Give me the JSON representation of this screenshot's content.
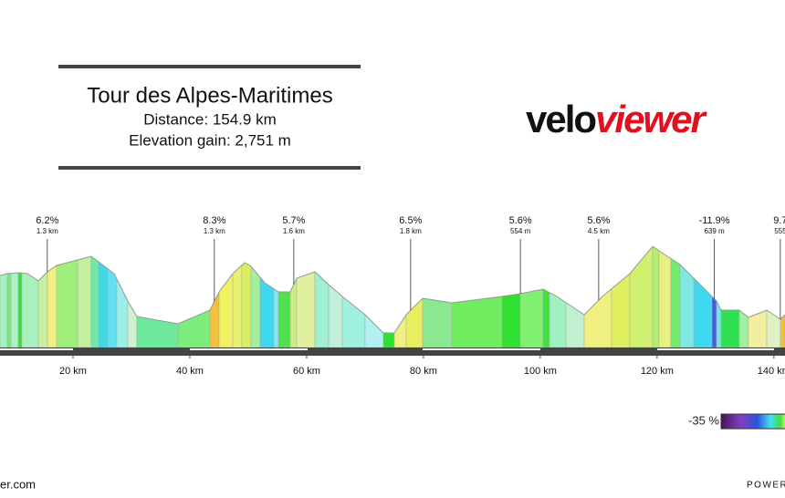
{
  "header": {
    "title": "Tour des Alpes-Maritimes",
    "distance": "Distance: 154.9 km",
    "elevation_gain": "Elevation gain: 2,751 m"
  },
  "logo": {
    "velo": "velo",
    "viewer": "viewer"
  },
  "chart_data": {
    "type": "area",
    "xlim": [
      7.5,
      141.9
    ],
    "xticks": [
      {
        "value": 20,
        "label": "20 km"
      },
      {
        "value": 40,
        "label": "40 km"
      },
      {
        "value": 60,
        "label": "60 km"
      },
      {
        "value": 80,
        "label": "80 km"
      },
      {
        "value": 100,
        "label": "100 km"
      },
      {
        "value": 120,
        "label": "120 km"
      },
      {
        "value": 140,
        "label": "140 km"
      }
    ],
    "annotations": [
      {
        "x": 15.6,
        "grade": "6.2%",
        "length": "1.3 km"
      },
      {
        "x": 44.2,
        "grade": "8.3%",
        "length": "1.3 km"
      },
      {
        "x": 57.8,
        "grade": "5.7%",
        "length": "1.6 km"
      },
      {
        "x": 77.8,
        "grade": "6.5%",
        "length": "1.8 km"
      },
      {
        "x": 96.6,
        "grade": "5.6%",
        "length": "554 m"
      },
      {
        "x": 110,
        "grade": "5.6%",
        "length": "4.5 km"
      },
      {
        "x": 129.8,
        "grade": "-11.9%",
        "length": "639 m"
      },
      {
        "x": 141.1,
        "grade": "9.7",
        "length": "555"
      }
    ]
  },
  "legend": {
    "min_label": "-35 %"
  },
  "footer": {
    "left": "er.com",
    "right": "POWERE"
  }
}
